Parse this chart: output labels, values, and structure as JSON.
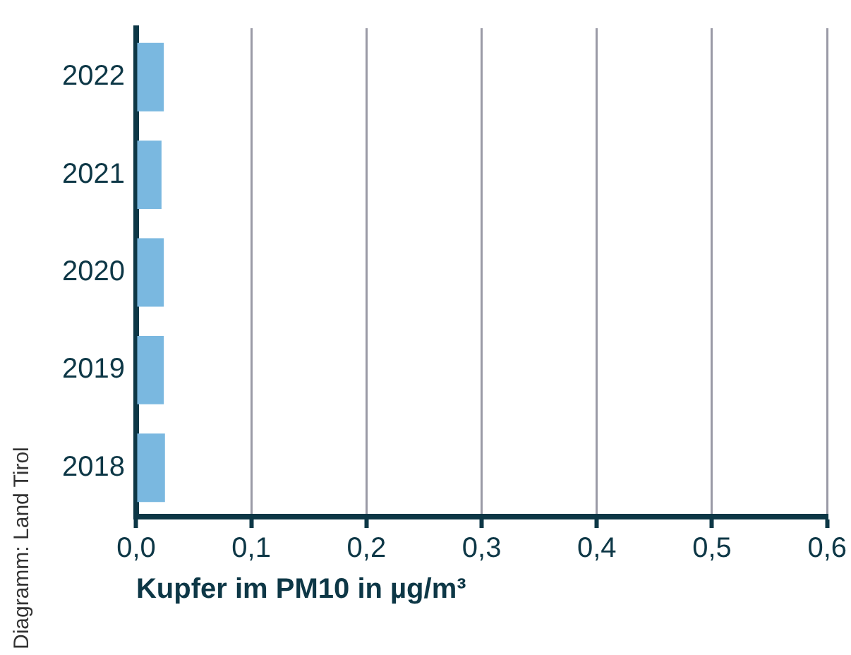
{
  "chart_data": {
    "type": "bar",
    "orientation": "horizontal",
    "xlabel": "Kupfer im PM10 in µg/m³",
    "annotations": [
      "Diagramm: Land Tirol"
    ],
    "categories": [
      "2022",
      "2021",
      "2020",
      "2019",
      "2018"
    ],
    "values": [
      0.024,
      0.022,
      0.024,
      0.024,
      0.025
    ],
    "color": "#7ab8e0",
    "xlim": [
      0,
      0.6
    ],
    "xticks": [
      {
        "value": 0,
        "label": "0,0"
      },
      {
        "value": 0.1,
        "label": "0,1"
      },
      {
        "value": 0.2,
        "label": "0,2"
      },
      {
        "value": 0.3,
        "label": "0,3"
      },
      {
        "value": 0.4,
        "label": "0,4"
      },
      {
        "value": 0.5,
        "label": "0,5"
      },
      {
        "value": 0.6,
        "label": "0,6"
      }
    ],
    "grid": "x",
    "legend": false
  }
}
